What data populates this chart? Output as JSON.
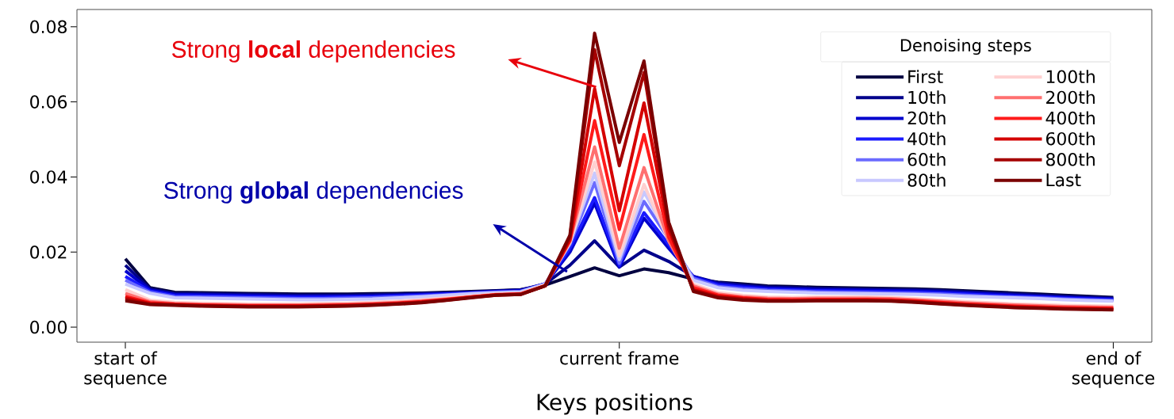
{
  "chart_data": {
    "type": "line",
    "xlabel": "Keys positions",
    "legend_title": "Denoising steps",
    "legend": "top right",
    "categories": [
      "start of sequence",
      null,
      null,
      null,
      null,
      null,
      null,
      null,
      null,
      null,
      null,
      null,
      null,
      null,
      null,
      null,
      null,
      null,
      null,
      null,
      "current frame",
      null,
      null,
      null,
      null,
      null,
      null,
      null,
      null,
      null,
      null,
      null,
      null,
      null,
      null,
      null,
      null,
      null,
      null,
      null,
      "end of sequence"
    ],
    "ylim": [
      -0.004,
      0.0846
    ],
    "yticks": [
      {
        "value": 0,
        "label": "0.00"
      },
      {
        "value": 0.02,
        "label": "0.02"
      },
      {
        "value": 0.04,
        "label": "0.04"
      },
      {
        "value": 0.06,
        "label": "0.06"
      },
      {
        "value": 0.08,
        "label": "0.08"
      }
    ],
    "annotations": [
      "Strong **local** dependencies",
      "Strong **global** dependencies"
    ],
    "series": [
      {
        "name": "First",
        "color": "#000040",
        "values": [
          0.0182,
          0.0105,
          0.0093,
          0.0092,
          0.0091,
          0.009,
          0.0089,
          0.0088,
          0.0088,
          0.0088,
          0.0089,
          0.009,
          0.0091,
          0.0093,
          0.0095,
          0.0097,
          0.01,
          0.0112,
          0.0135,
          0.0158,
          0.0137,
          0.0155,
          0.0145,
          0.0128,
          0.012,
          0.0115,
          0.011,
          0.0108,
          0.0106,
          0.0105,
          0.0104,
          0.0103,
          0.0102,
          0.01,
          0.0097,
          0.0094,
          0.0091,
          0.0088,
          0.0085,
          0.0082,
          0.0079
        ]
      },
      {
        "name": "10th",
        "color": "#00008b",
        "values": [
          0.0165,
          0.0102,
          0.009,
          0.0089,
          0.0088,
          0.0087,
          0.0086,
          0.0085,
          0.0085,
          0.0085,
          0.0086,
          0.0087,
          0.0089,
          0.0091,
          0.0093,
          0.0096,
          0.0099,
          0.0115,
          0.0165,
          0.023,
          0.016,
          0.0205,
          0.0175,
          0.0135,
          0.0118,
          0.0112,
          0.0107,
          0.0105,
          0.0103,
          0.0102,
          0.0101,
          0.01,
          0.0099,
          0.0097,
          0.0094,
          0.0091,
          0.0088,
          0.0085,
          0.0082,
          0.0079,
          0.0077
        ]
      },
      {
        "name": "20th",
        "color": "#0000cd",
        "values": [
          0.015,
          0.0099,
          0.0087,
          0.0086,
          0.0085,
          0.0084,
          0.0083,
          0.0082,
          0.0082,
          0.0082,
          0.0083,
          0.0085,
          0.0087,
          0.0089,
          0.0092,
          0.0095,
          0.0097,
          0.0115,
          0.02,
          0.033,
          0.016,
          0.029,
          0.021,
          0.0135,
          0.0115,
          0.0109,
          0.0104,
          0.0102,
          0.01,
          0.0099,
          0.0098,
          0.0097,
          0.0096,
          0.0094,
          0.0091,
          0.0088,
          0.0085,
          0.0082,
          0.0079,
          0.0077,
          0.0075
        ]
      },
      {
        "name": "40th",
        "color": "#1a1aff",
        "values": [
          0.0135,
          0.0096,
          0.0084,
          0.0083,
          0.0082,
          0.0081,
          0.008,
          0.0079,
          0.0079,
          0.008,
          0.0081,
          0.0083,
          0.0085,
          0.0088,
          0.0091,
          0.0094,
          0.0096,
          0.0115,
          0.021,
          0.0345,
          0.0165,
          0.0305,
          0.022,
          0.0132,
          0.0112,
          0.0106,
          0.0101,
          0.0099,
          0.0097,
          0.0096,
          0.0095,
          0.0094,
          0.0093,
          0.0091,
          0.0088,
          0.0085,
          0.0082,
          0.008,
          0.0077,
          0.0075,
          0.0073
        ]
      },
      {
        "name": "60th",
        "color": "#6b6bff",
        "values": [
          0.0125,
          0.0093,
          0.0081,
          0.008,
          0.0079,
          0.0078,
          0.0077,
          0.0076,
          0.0076,
          0.0077,
          0.0078,
          0.008,
          0.0083,
          0.0086,
          0.009,
          0.0093,
          0.0095,
          0.0115,
          0.022,
          0.0385,
          0.017,
          0.0335,
          0.0235,
          0.013,
          0.0108,
          0.0102,
          0.0098,
          0.0096,
          0.0094,
          0.0093,
          0.0092,
          0.0091,
          0.009,
          0.0088,
          0.0085,
          0.0082,
          0.008,
          0.0078,
          0.0075,
          0.0073,
          0.0071
        ]
      },
      {
        "name": "80th",
        "color": "#c8c8ff",
        "values": [
          0.0115,
          0.009,
          0.0078,
          0.0077,
          0.0076,
          0.0075,
          0.0074,
          0.0073,
          0.0073,
          0.0074,
          0.0075,
          0.0078,
          0.0081,
          0.0085,
          0.0089,
          0.0092,
          0.0094,
          0.0114,
          0.0225,
          0.041,
          0.018,
          0.036,
          0.024,
          0.0125,
          0.0105,
          0.0098,
          0.0095,
          0.0093,
          0.0091,
          0.009,
          0.0089,
          0.0088,
          0.0087,
          0.0085,
          0.0082,
          0.008,
          0.0078,
          0.0076,
          0.0073,
          0.0071,
          0.0069
        ]
      },
      {
        "name": "100th",
        "color": "#ffd0d0",
        "values": [
          0.01,
          0.0072,
          0.0066,
          0.0064,
          0.0063,
          0.0062,
          0.0062,
          0.0062,
          0.0063,
          0.0064,
          0.0066,
          0.0069,
          0.0073,
          0.0078,
          0.0083,
          0.0088,
          0.009,
          0.0112,
          0.0225,
          0.044,
          0.019,
          0.038,
          0.023,
          0.0115,
          0.0092,
          0.0085,
          0.008,
          0.0079,
          0.008,
          0.008,
          0.008,
          0.0079,
          0.0076,
          0.0072,
          0.0068,
          0.0065,
          0.0062,
          0.006,
          0.0058,
          0.0057,
          0.0056
        ]
      },
      {
        "name": "200th",
        "color": "#ff7070",
        "values": [
          0.009,
          0.0068,
          0.0063,
          0.0061,
          0.006,
          0.0059,
          0.0059,
          0.0059,
          0.006,
          0.0061,
          0.0063,
          0.0066,
          0.007,
          0.0075,
          0.0081,
          0.0087,
          0.0089,
          0.0111,
          0.023,
          0.048,
          0.021,
          0.0425,
          0.023,
          0.011,
          0.0088,
          0.0081,
          0.0077,
          0.0076,
          0.0077,
          0.0077,
          0.0077,
          0.0076,
          0.0073,
          0.0069,
          0.0065,
          0.0062,
          0.0059,
          0.0057,
          0.0055,
          0.0054,
          0.0053
        ]
      },
      {
        "name": "400th",
        "color": "#ff1a1a",
        "values": [
          0.0082,
          0.0065,
          0.0061,
          0.0059,
          0.0058,
          0.0057,
          0.0057,
          0.0057,
          0.0058,
          0.0059,
          0.0061,
          0.0064,
          0.0068,
          0.0074,
          0.008,
          0.0086,
          0.0088,
          0.011,
          0.023,
          0.055,
          0.026,
          0.0513,
          0.024,
          0.0105,
          0.0085,
          0.0078,
          0.0074,
          0.0073,
          0.0074,
          0.0074,
          0.0074,
          0.0073,
          0.007,
          0.0066,
          0.0062,
          0.0059,
          0.0056,
          0.0054,
          0.0052,
          0.0051,
          0.005
        ]
      },
      {
        "name": "600th",
        "color": "#d40000",
        "values": [
          0.0078,
          0.0063,
          0.006,
          0.0058,
          0.0057,
          0.0056,
          0.0056,
          0.0056,
          0.0057,
          0.0058,
          0.006,
          0.0063,
          0.0067,
          0.0073,
          0.008,
          0.0086,
          0.0088,
          0.011,
          0.0235,
          0.0635,
          0.031,
          0.0597,
          0.026,
          0.01,
          0.0082,
          0.0076,
          0.0072,
          0.0071,
          0.0072,
          0.0072,
          0.0072,
          0.0071,
          0.0068,
          0.0064,
          0.006,
          0.0057,
          0.0054,
          0.0052,
          0.005,
          0.0049,
          0.0048
        ]
      },
      {
        "name": "800th",
        "color": "#a50000",
        "values": [
          0.0074,
          0.0061,
          0.0059,
          0.0057,
          0.0056,
          0.0055,
          0.0055,
          0.0055,
          0.0056,
          0.0057,
          0.0059,
          0.0062,
          0.0066,
          0.0072,
          0.0079,
          0.0085,
          0.0087,
          0.011,
          0.024,
          0.0739,
          0.043,
          0.0678,
          0.027,
          0.0098,
          0.008,
          0.0074,
          0.007,
          0.007,
          0.0071,
          0.0071,
          0.0071,
          0.007,
          0.0067,
          0.0063,
          0.0059,
          0.0056,
          0.0053,
          0.0051,
          0.0049,
          0.0048,
          0.0047
        ]
      },
      {
        "name": "Last",
        "color": "#7a0000",
        "values": [
          0.007,
          0.006,
          0.0058,
          0.0056,
          0.0055,
          0.0054,
          0.0054,
          0.0054,
          0.0055,
          0.0056,
          0.0058,
          0.0061,
          0.0065,
          0.0071,
          0.0078,
          0.0085,
          0.0087,
          0.011,
          0.0245,
          0.0783,
          0.0492,
          0.0709,
          0.028,
          0.0095,
          0.0078,
          0.0072,
          0.0069,
          0.0069,
          0.007,
          0.007,
          0.007,
          0.0069,
          0.0066,
          0.0062,
          0.0058,
          0.0055,
          0.0052,
          0.005,
          0.0048,
          0.0047,
          0.0046
        ]
      }
    ]
  }
}
